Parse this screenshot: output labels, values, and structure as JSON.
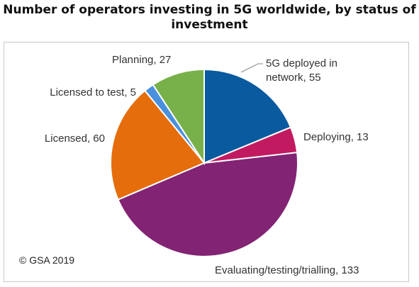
{
  "chart_data": {
    "type": "pie",
    "title": "Number of operators investing in 5G worldwide, by status of investment",
    "slices": [
      {
        "label": "5G deployed in network",
        "value": 55,
        "color": "#0a5aa0"
      },
      {
        "label": "Deploying",
        "value": 13,
        "color": "#c21a60"
      },
      {
        "label": "Evaluating/testing/trialling",
        "value": 133,
        "color": "#822374"
      },
      {
        "label": "Licensed",
        "value": 60,
        "color": "#e56d0c"
      },
      {
        "label": "Licensed to test",
        "value": 5,
        "color": "#4a90dc"
      },
      {
        "label": "Planning",
        "value": 27,
        "color": "#78b04a"
      }
    ],
    "data_labels": [
      [
        "5G deployed in",
        "network, 55"
      ],
      [
        "Deploying, 13"
      ],
      [
        "Evaluating/testing/trialling, 133"
      ],
      [
        "Licensed, 60"
      ],
      [
        "Licensed to test, 5"
      ],
      [
        "Planning, 27"
      ]
    ]
  },
  "copyright": "© GSA 2019"
}
